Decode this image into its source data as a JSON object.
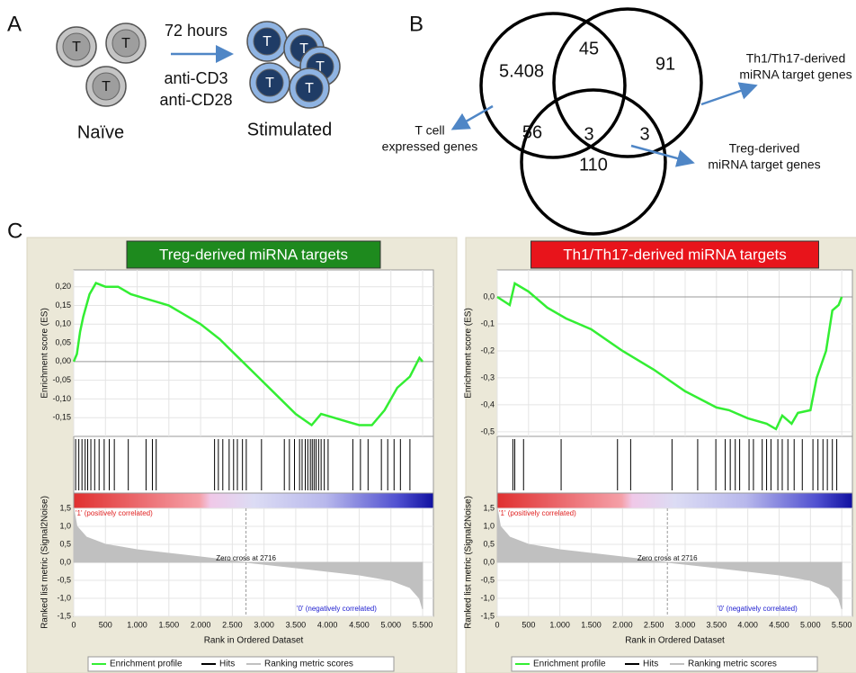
{
  "panel_a": {
    "label": "A",
    "cell_letter": "T",
    "time": "72 hours",
    "stimuli": [
      "anti-CD3",
      "anti-CD28"
    ],
    "naive": "Naïve",
    "stimulated": "Stimulated"
  },
  "panel_b": {
    "label": "B",
    "regions": [
      {
        "value": 5408,
        "label": "5.408"
      },
      45,
      91,
      56,
      3,
      3,
      110
    ],
    "sets": [
      {
        "lines": [
          "T cell",
          "expressed genes"
        ]
      },
      {
        "lines": [
          "Th1/Th17-derived",
          "miRNA target genes"
        ]
      },
      {
        "lines": [
          "Treg-derived",
          "miRNA target genes"
        ]
      }
    ]
  },
  "panel_c": {
    "label": "C"
  },
  "chart_data": [
    {
      "type": "gsea",
      "title": "Treg-derived miRNA targets",
      "title_color": "#1e8a1e",
      "y_label": "Enrichment score (ES)",
      "y2_label": "Ranked list metric (Signal2Noise)",
      "x_label": "Rank in Ordered Dataset",
      "xlim": [
        0,
        5670
      ],
      "xticks": [
        0,
        500,
        {
          "value": 1000,
          "label": "1.000"
        },
        {
          "value": 1500,
          "label": "1.500"
        },
        {
          "value": 2000,
          "label": "2.000"
        },
        {
          "value": 2500,
          "label": "2.500"
        },
        {
          "value": 3000,
          "label": "3.000"
        },
        {
          "value": 3500,
          "label": "3.500"
        },
        {
          "value": 4000,
          "label": "4.000"
        },
        {
          "value": 4500,
          "label": "4.500"
        },
        {
          "value": 5000,
          "label": "5.000"
        },
        {
          "value": 5500,
          "label": "5.500"
        }
      ],
      "ylim": [
        -0.2,
        0.245
      ],
      "yticks": [
        {
          "value": 0.2,
          "label": "0,20"
        },
        {
          "value": 0.15,
          "label": "0,15"
        },
        {
          "value": 0.1,
          "label": "0,10"
        },
        {
          "value": 0.05,
          "label": "0,05"
        },
        {
          "value": 0,
          "label": "0,00"
        },
        {
          "value": -0.05,
          "label": "-0,05"
        },
        {
          "value": -0.1,
          "label": "-0,10"
        },
        {
          "value": -0.15,
          "label": "-0,15"
        }
      ],
      "y2lim": [
        -1.5,
        1.5
      ],
      "y2ticks": [
        {
          "value": 1.5,
          "label": "1,5"
        },
        {
          "value": 1,
          "label": "1,0"
        },
        {
          "value": 0.5,
          "label": "0,5"
        },
        {
          "value": 0,
          "label": "0,0"
        },
        {
          "value": -0.5,
          "label": "-0,5"
        },
        {
          "value": -1,
          "label": "-1,0"
        },
        {
          "value": -1.5,
          "label": "-1,5"
        }
      ],
      "grid": true,
      "series": [
        {
          "name": "Enrichment profile",
          "color": "#33ee33",
          "x": [
            0,
            50,
            100,
            150,
            250,
            350,
            500,
            700,
            900,
            1100,
            1300,
            1500,
            1700,
            2000,
            2300,
            2600,
            2900,
            3200,
            3500,
            3750,
            3900,
            4100,
            4300,
            4500,
            4700,
            4900,
            5100,
            5300,
            5450,
            5500
          ],
          "values": [
            0,
            0.02,
            0.08,
            0.12,
            0.18,
            0.21,
            0.2,
            0.2,
            0.18,
            0.17,
            0.16,
            0.15,
            0.13,
            0.1,
            0.06,
            0.01,
            -0.04,
            -0.09,
            -0.14,
            -0.17,
            -0.14,
            -0.15,
            -0.16,
            -0.17,
            -0.17,
            -0.13,
            -0.07,
            -0.04,
            0.01,
            0
          ]
        }
      ],
      "hits": {
        "name": "Hits",
        "color": "#000000",
        "x": [
          30,
          80,
          130,
          180,
          220,
          270,
          330,
          400,
          480,
          560,
          640,
          860,
          1140,
          1240,
          1300,
          2220,
          2280,
          2350,
          2450,
          2520,
          2580,
          2660,
          2720,
          2960,
          3320,
          3400,
          3480,
          3560,
          3600,
          3650,
          3690,
          3730,
          3760,
          3790,
          3820,
          3860,
          3900,
          3950,
          4010,
          4400,
          4520,
          4640,
          4850,
          4950,
          5050,
          5150,
          5300
        ]
      },
      "metric": {
        "name": "Ranking metric scores",
        "color": "#c0c0c0",
        "x": [
          0,
          50,
          200,
          500,
          1000,
          1500,
          2000,
          2716,
          3500,
          4000,
          4500,
          5000,
          5300,
          5450,
          5500
        ],
        "values": [
          1.5,
          1.0,
          0.7,
          0.5,
          0.35,
          0.25,
          0.15,
          0,
          -0.15,
          -0.25,
          -0.35,
          -0.5,
          -0.7,
          -1.0,
          -1.3
        ]
      },
      "zero_cross": 2716,
      "zero_cross_label": "Zero cross at 2716",
      "pos_label": "'1' (positively correlated)",
      "neg_label": "'0' (negatively correlated)"
    },
    {
      "type": "gsea",
      "title": "Th1/Th17-derived miRNA targets",
      "title_color": "#e8141b",
      "y_label": "Enrichment score (ES)",
      "y2_label": "Ranked list metric (Signal2Noise)",
      "x_label": "Rank in Ordered Dataset",
      "xlim": [
        0,
        5670
      ],
      "xticks": [
        0,
        500,
        {
          "value": 1000,
          "label": "1.000"
        },
        {
          "value": 1500,
          "label": "1.500"
        },
        {
          "value": 2000,
          "label": "2.000"
        },
        {
          "value": 2500,
          "label": "2.500"
        },
        {
          "value": 3000,
          "label": "3.000"
        },
        {
          "value": 3500,
          "label": "3.500"
        },
        {
          "value": 4000,
          "label": "4.000"
        },
        {
          "value": 4500,
          "label": "4.500"
        },
        {
          "value": 5000,
          "label": "5.000"
        },
        {
          "value": 5500,
          "label": "5.500"
        }
      ],
      "ylim": [
        -0.517,
        0.1
      ],
      "yticks": [
        {
          "value": 0,
          "label": "0,0"
        },
        {
          "value": -0.1,
          "label": "-0,1"
        },
        {
          "value": -0.2,
          "label": "-0,2"
        },
        {
          "value": -0.3,
          "label": "-0,3"
        },
        {
          "value": -0.4,
          "label": "-0,4"
        },
        {
          "value": -0.5,
          "label": "-0,5"
        }
      ],
      "y2lim": [
        -1.5,
        1.5
      ],
      "y2ticks": [
        {
          "value": 1.5,
          "label": "1,5"
        },
        {
          "value": 1,
          "label": "1,0"
        },
        {
          "value": 0.5,
          "label": "0,5"
        },
        {
          "value": 0,
          "label": "0,0"
        },
        {
          "value": -0.5,
          "label": "-0,5"
        },
        {
          "value": -1,
          "label": "-1,0"
        },
        {
          "value": -1.5,
          "label": "-1,5"
        }
      ],
      "grid": true,
      "series": [
        {
          "name": "Enrichment profile",
          "color": "#33ee33",
          "x": [
            0,
            200,
            280,
            500,
            800,
            1100,
            1200,
            1500,
            2000,
            2500,
            3000,
            3500,
            3700,
            4000,
            4300,
            4450,
            4550,
            4700,
            4800,
            5000,
            5100,
            5250,
            5350,
            5450,
            5500
          ],
          "values": [
            0,
            -0.03,
            0.05,
            0.02,
            -0.04,
            -0.08,
            -0.09,
            -0.12,
            -0.2,
            -0.27,
            -0.35,
            -0.41,
            -0.42,
            -0.45,
            -0.47,
            -0.49,
            -0.44,
            -0.47,
            -0.43,
            -0.42,
            -0.3,
            -0.2,
            -0.05,
            -0.03,
            0
          ]
        }
      ],
      "hits": {
        "name": "Hits",
        "color": "#000000",
        "x": [
          250,
          280,
          420,
          1020,
          1920,
          2130,
          2790,
          3200,
          3490,
          3640,
          3720,
          3800,
          3870,
          4020,
          4090,
          4230,
          4300,
          4370,
          4480,
          4550,
          4640,
          4740,
          4870,
          5040,
          5120,
          5200,
          5270,
          5350,
          5420
        ]
      },
      "metric": {
        "name": "Ranking metric scores",
        "color": "#c0c0c0",
        "x": [
          0,
          50,
          200,
          500,
          1000,
          1500,
          2000,
          2716,
          3500,
          4000,
          4500,
          5000,
          5300,
          5450,
          5500
        ],
        "values": [
          1.5,
          1.0,
          0.7,
          0.5,
          0.35,
          0.25,
          0.15,
          0,
          -0.15,
          -0.25,
          -0.35,
          -0.5,
          -0.7,
          -1.0,
          -1.3
        ]
      },
      "zero_cross": 2716,
      "zero_cross_label": "Zero cross at 2716",
      "pos_label": "'1' (positively correlated)",
      "neg_label": "'0' (negatively correlated)"
    }
  ]
}
